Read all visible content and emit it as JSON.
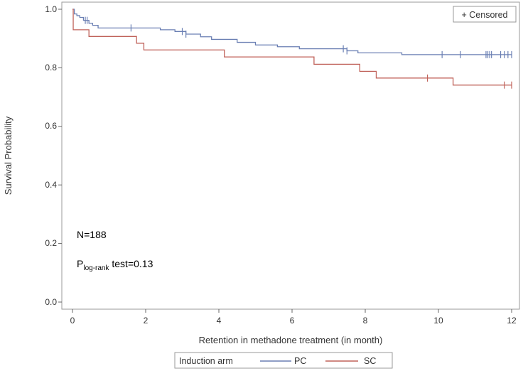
{
  "chart_data": {
    "type": "line",
    "subtype": "kaplan-meier",
    "xlabel": "Retention in methadone treatment (in month)",
    "ylabel": "Survival Probability",
    "xlim": [
      0,
      12
    ],
    "ylim": [
      0,
      1
    ],
    "x_ticks": [
      0,
      2,
      4,
      6,
      8,
      10,
      12
    ],
    "y_ticks": [
      "0.0",
      "0.2",
      "0.4",
      "0.6",
      "0.8",
      "1.0"
    ],
    "censored_legend": "+ Censored",
    "legend_title": "Induction arm",
    "annotations": {
      "n_text": "N=188",
      "p_main": "P",
      "p_sub": "log-rank",
      "p_rest": " test=0.13"
    },
    "colors": {
      "PC": "#6a7fb3",
      "SC": "#c0625a",
      "frame": "#999999",
      "axis": "#666666"
    },
    "series": [
      {
        "name": "PC",
        "steps": [
          [
            0,
            1.0
          ],
          [
            0.05,
            0.984
          ],
          [
            0.12,
            0.978
          ],
          [
            0.2,
            0.972
          ],
          [
            0.3,
            0.962
          ],
          [
            0.45,
            0.952
          ],
          [
            0.55,
            0.945
          ],
          [
            0.7,
            0.936
          ],
          [
            2.4,
            0.93
          ],
          [
            2.8,
            0.924
          ],
          [
            3.1,
            0.915
          ],
          [
            3.5,
            0.906
          ],
          [
            3.8,
            0.897
          ],
          [
            4.5,
            0.887
          ],
          [
            5.0,
            0.878
          ],
          [
            5.6,
            0.872
          ],
          [
            6.2,
            0.865
          ],
          [
            7.5,
            0.858
          ],
          [
            7.8,
            0.851
          ],
          [
            9.0,
            0.845
          ]
        ],
        "end": 12.0,
        "censored": [
          0.35,
          0.4,
          1.6,
          3.0,
          3.1,
          7.4,
          7.5,
          10.1,
          10.6,
          11.3,
          11.35,
          11.4,
          11.45,
          11.7,
          11.8,
          11.9,
          12.0
        ]
      },
      {
        "name": "SC",
        "steps": [
          [
            0,
            1.0
          ],
          [
            0.02,
            0.93
          ],
          [
            0.45,
            0.907
          ],
          [
            1.75,
            0.884
          ],
          [
            1.95,
            0.861
          ],
          [
            4.15,
            0.837
          ],
          [
            6.6,
            0.812
          ],
          [
            7.85,
            0.788
          ],
          [
            8.3,
            0.765
          ],
          [
            10.4,
            0.741
          ]
        ],
        "end": 12.0,
        "censored": [
          9.7,
          11.8,
          12.0
        ]
      }
    ]
  }
}
